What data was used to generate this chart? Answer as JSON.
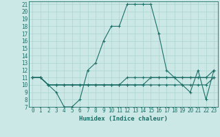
{
  "xlabel": "Humidex (Indice chaleur)",
  "bg_color": "#cce8e6",
  "grid_color": "#aad4d0",
  "line_color": "#1a6e66",
  "xlim": [
    -0.5,
    23.5
  ],
  "ylim": [
    7,
    21.4
  ],
  "xticks": [
    0,
    1,
    2,
    3,
    4,
    5,
    6,
    7,
    8,
    9,
    10,
    11,
    12,
    13,
    14,
    15,
    16,
    17,
    18,
    19,
    20,
    21,
    22,
    23
  ],
  "yticks": [
    7,
    8,
    9,
    10,
    11,
    12,
    13,
    14,
    15,
    16,
    17,
    18,
    19,
    20,
    21
  ],
  "series": [
    [
      11,
      11,
      10,
      9,
      7,
      7,
      8,
      12,
      13,
      16,
      18,
      18,
      21,
      21,
      21,
      21,
      17,
      12,
      11,
      10,
      9,
      12,
      8,
      12
    ],
    [
      11,
      11,
      10,
      10,
      10,
      10,
      10,
      10,
      10,
      10,
      10,
      10,
      10,
      10,
      10,
      11,
      11,
      11,
      11,
      11,
      11,
      11,
      11,
      11
    ],
    [
      11,
      11,
      10,
      10,
      10,
      10,
      10,
      10,
      10,
      10,
      10,
      10,
      11,
      11,
      11,
      11,
      11,
      11,
      11,
      11,
      11,
      11,
      11,
      12
    ],
    [
      11,
      11,
      10,
      10,
      10,
      10,
      10,
      10,
      10,
      10,
      10,
      10,
      10,
      10,
      10,
      10,
      10,
      10,
      10,
      10,
      10,
      10,
      10,
      11
    ]
  ],
  "tick_fontsize": 5.5,
  "xlabel_fontsize": 6.5
}
